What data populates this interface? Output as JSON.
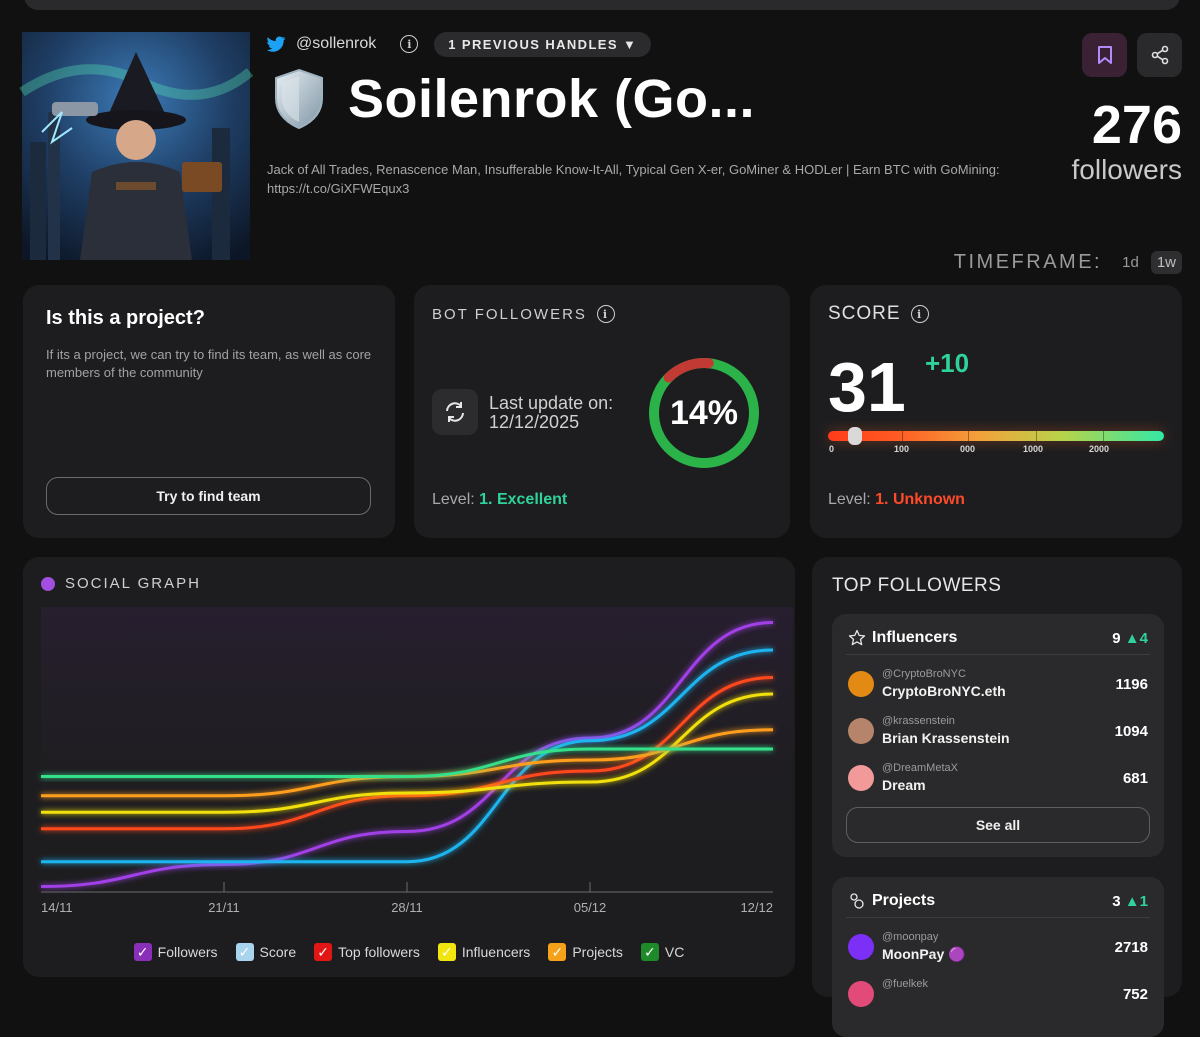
{
  "profile": {
    "handle": "@sollenrok",
    "previous_handles": "1 PREVIOUS HANDLES ▼",
    "name": "Soilenrok (Go...",
    "bio": "Jack of All Trades, Renascence Man, Insufferable Know-It-All, Typical Gen X-er, GoMiner & HODLer | Earn BTC with GoMining: https://t.co/GiXFWEqux3",
    "followers_count": "276",
    "followers_label": "followers"
  },
  "timeframe": {
    "label": "TIMEFRAME:",
    "options": [
      "1d",
      "1w"
    ],
    "active": "1w"
  },
  "project_card": {
    "title": "Is this a project?",
    "description": "If its a project, we can try to find its team, as well as core members of the community",
    "button": "Try to find team"
  },
  "bot_followers": {
    "label": "BOT FOLLOWERS",
    "update_label": "Last update on:",
    "update_date": "12/12/2025",
    "percent_text": "14%",
    "percent": 14,
    "level_label": "Level:",
    "level_value": "1. Excellent"
  },
  "score": {
    "label": "SCORE",
    "value": "31",
    "delta": "+10",
    "ticks": [
      "0",
      "100",
      "000",
      "1000",
      "2000"
    ],
    "level_label": "Level:",
    "level_value": "1. Unknown"
  },
  "social_graph": {
    "label": "SOCIAL GRAPH",
    "accent": "#a34ee0"
  },
  "chart_data": {
    "type": "line",
    "x": [
      "14/11",
      "21/11",
      "28/11",
      "05/12",
      "12/12"
    ],
    "grid": false,
    "legend": "bottom",
    "series": [
      {
        "name": "Followers",
        "color": "#a23fe8",
        "values": [
          2,
          10,
          22,
          56,
          98
        ]
      },
      {
        "name": "Score",
        "color": "#1fb5f0",
        "values": [
          11,
          11,
          11,
          55,
          88
        ]
      },
      {
        "name": "Top followers",
        "color": "#ff4a1f",
        "values": [
          23,
          23,
          35,
          44,
          78
        ]
      },
      {
        "name": "Influencers",
        "color": "#f2e010",
        "values": [
          29,
          29,
          36,
          40,
          72
        ]
      },
      {
        "name": "Projects",
        "color": "#ff9e1b",
        "values": [
          35,
          35,
          42,
          48,
          59
        ]
      },
      {
        "name": "VC",
        "color": "#35e08a",
        "values": [
          42,
          42,
          42,
          52,
          52
        ]
      }
    ]
  },
  "top_followers": {
    "title": "TOP FOLLOWERS",
    "influencers": {
      "title": "Influencers",
      "count": "9",
      "delta": "▲4",
      "items": [
        {
          "handle": "@CryptoBroNYC",
          "name": "CryptoBroNYC.eth",
          "score": "1196",
          "color": "#e28a14"
        },
        {
          "handle": "@krassenstein",
          "name": "Brian Krassenstein",
          "score": "1094",
          "color": "#b5846a"
        },
        {
          "handle": "@DreamMetaX",
          "name": "Dream",
          "score": "681",
          "color": "#f29a9a"
        }
      ],
      "see_all": "See all"
    },
    "projects": {
      "title": "Projects",
      "count": "3",
      "delta": "▲1",
      "items": [
        {
          "handle": "@moonpay",
          "name": "MoonPay 🟣",
          "score": "2718",
          "color": "#7b2ff7"
        },
        {
          "handle": "@fuelkek",
          "name": "",
          "score": "752",
          "color": "#e24a7a"
        }
      ]
    }
  }
}
